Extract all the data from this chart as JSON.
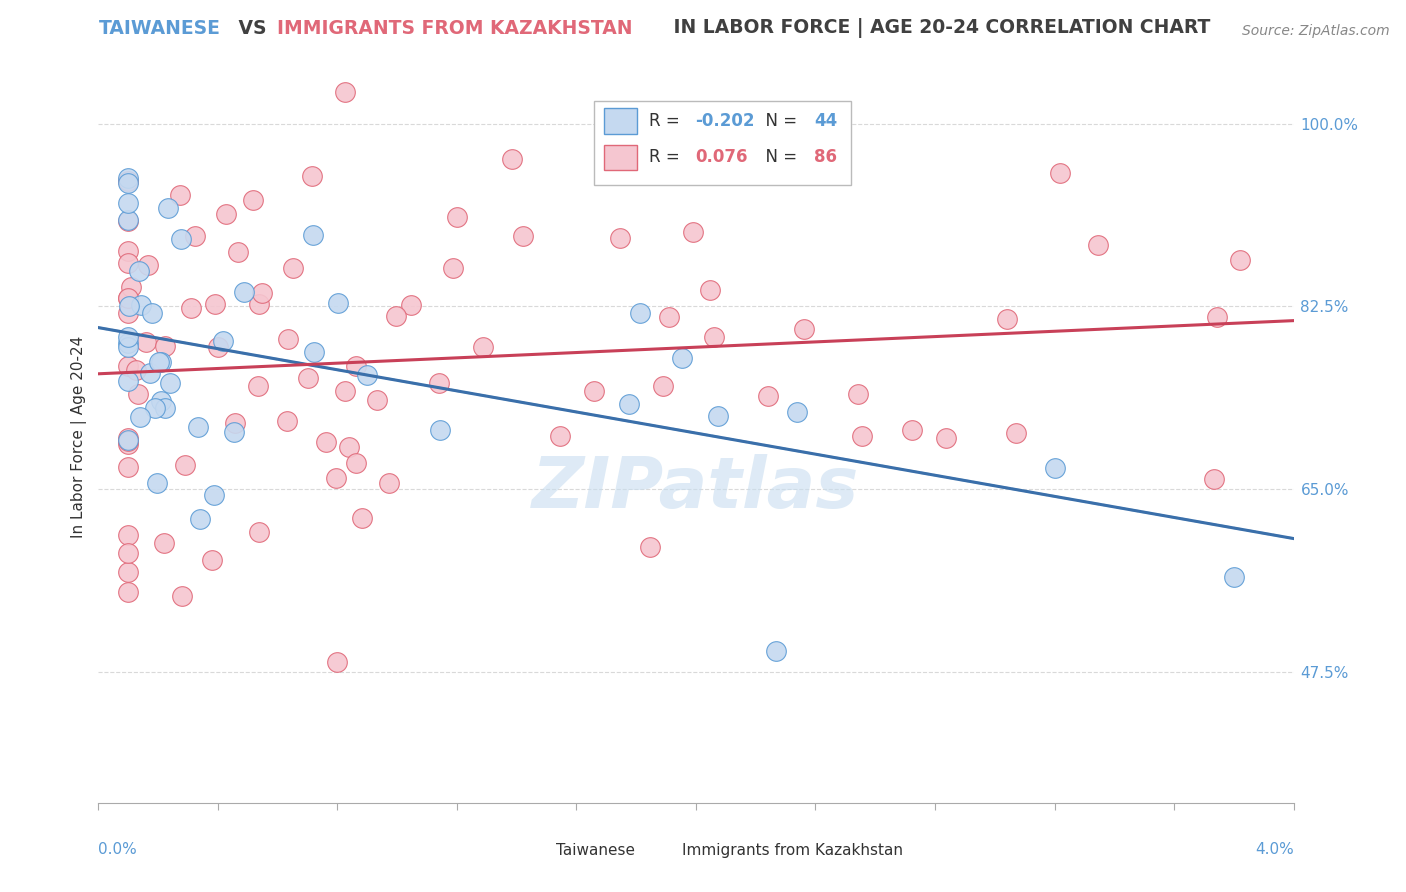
{
  "title_parts": [
    {
      "text": "TAIWANESE",
      "color": "#5b9bd5"
    },
    {
      "text": " VS ",
      "color": "#404040"
    },
    {
      "text": "IMMIGRANTS FROM KAZAKHSTAN",
      "color": "#e06878"
    },
    {
      "text": " IN LABOR FORCE | AGE 20-24 CORRELATION CHART",
      "color": "#404040"
    }
  ],
  "source": "Source: ZipAtlas.com",
  "ylabel": "In Labor Force | Age 20-24",
  "right_yticks": [
    47.5,
    65.0,
    82.5,
    100.0
  ],
  "right_ytick_labels": [
    "47.5%",
    "65.0%",
    "82.5%",
    "100.0%"
  ],
  "xmin": 0.0,
  "xmax": 0.04,
  "ymin": 35.0,
  "ymax": 105.0,
  "legend_blue_r": "-0.202",
  "legend_blue_n": "44",
  "legend_pink_r": "0.076",
  "legend_pink_n": "86",
  "legend_label_blue": "Taiwanese",
  "legend_label_pink": "Immigrants from Kazakhstan",
  "blue_fill": "#c5d9f0",
  "pink_fill": "#f5c6d0",
  "blue_edge": "#5b9bd5",
  "pink_edge": "#e06878",
  "blue_line": "#3a6faa",
  "pink_line": "#c84058",
  "blue_dash": "#8ab4d8",
  "grid_color": "#d0d0d0",
  "background": "#ffffff",
  "watermark_color": "#c8ddf0",
  "title_fontsize": 13.5,
  "source_fontsize": 10,
  "legend_fontsize": 12,
  "ylabel_fontsize": 11,
  "tick_label_fontsize": 11
}
